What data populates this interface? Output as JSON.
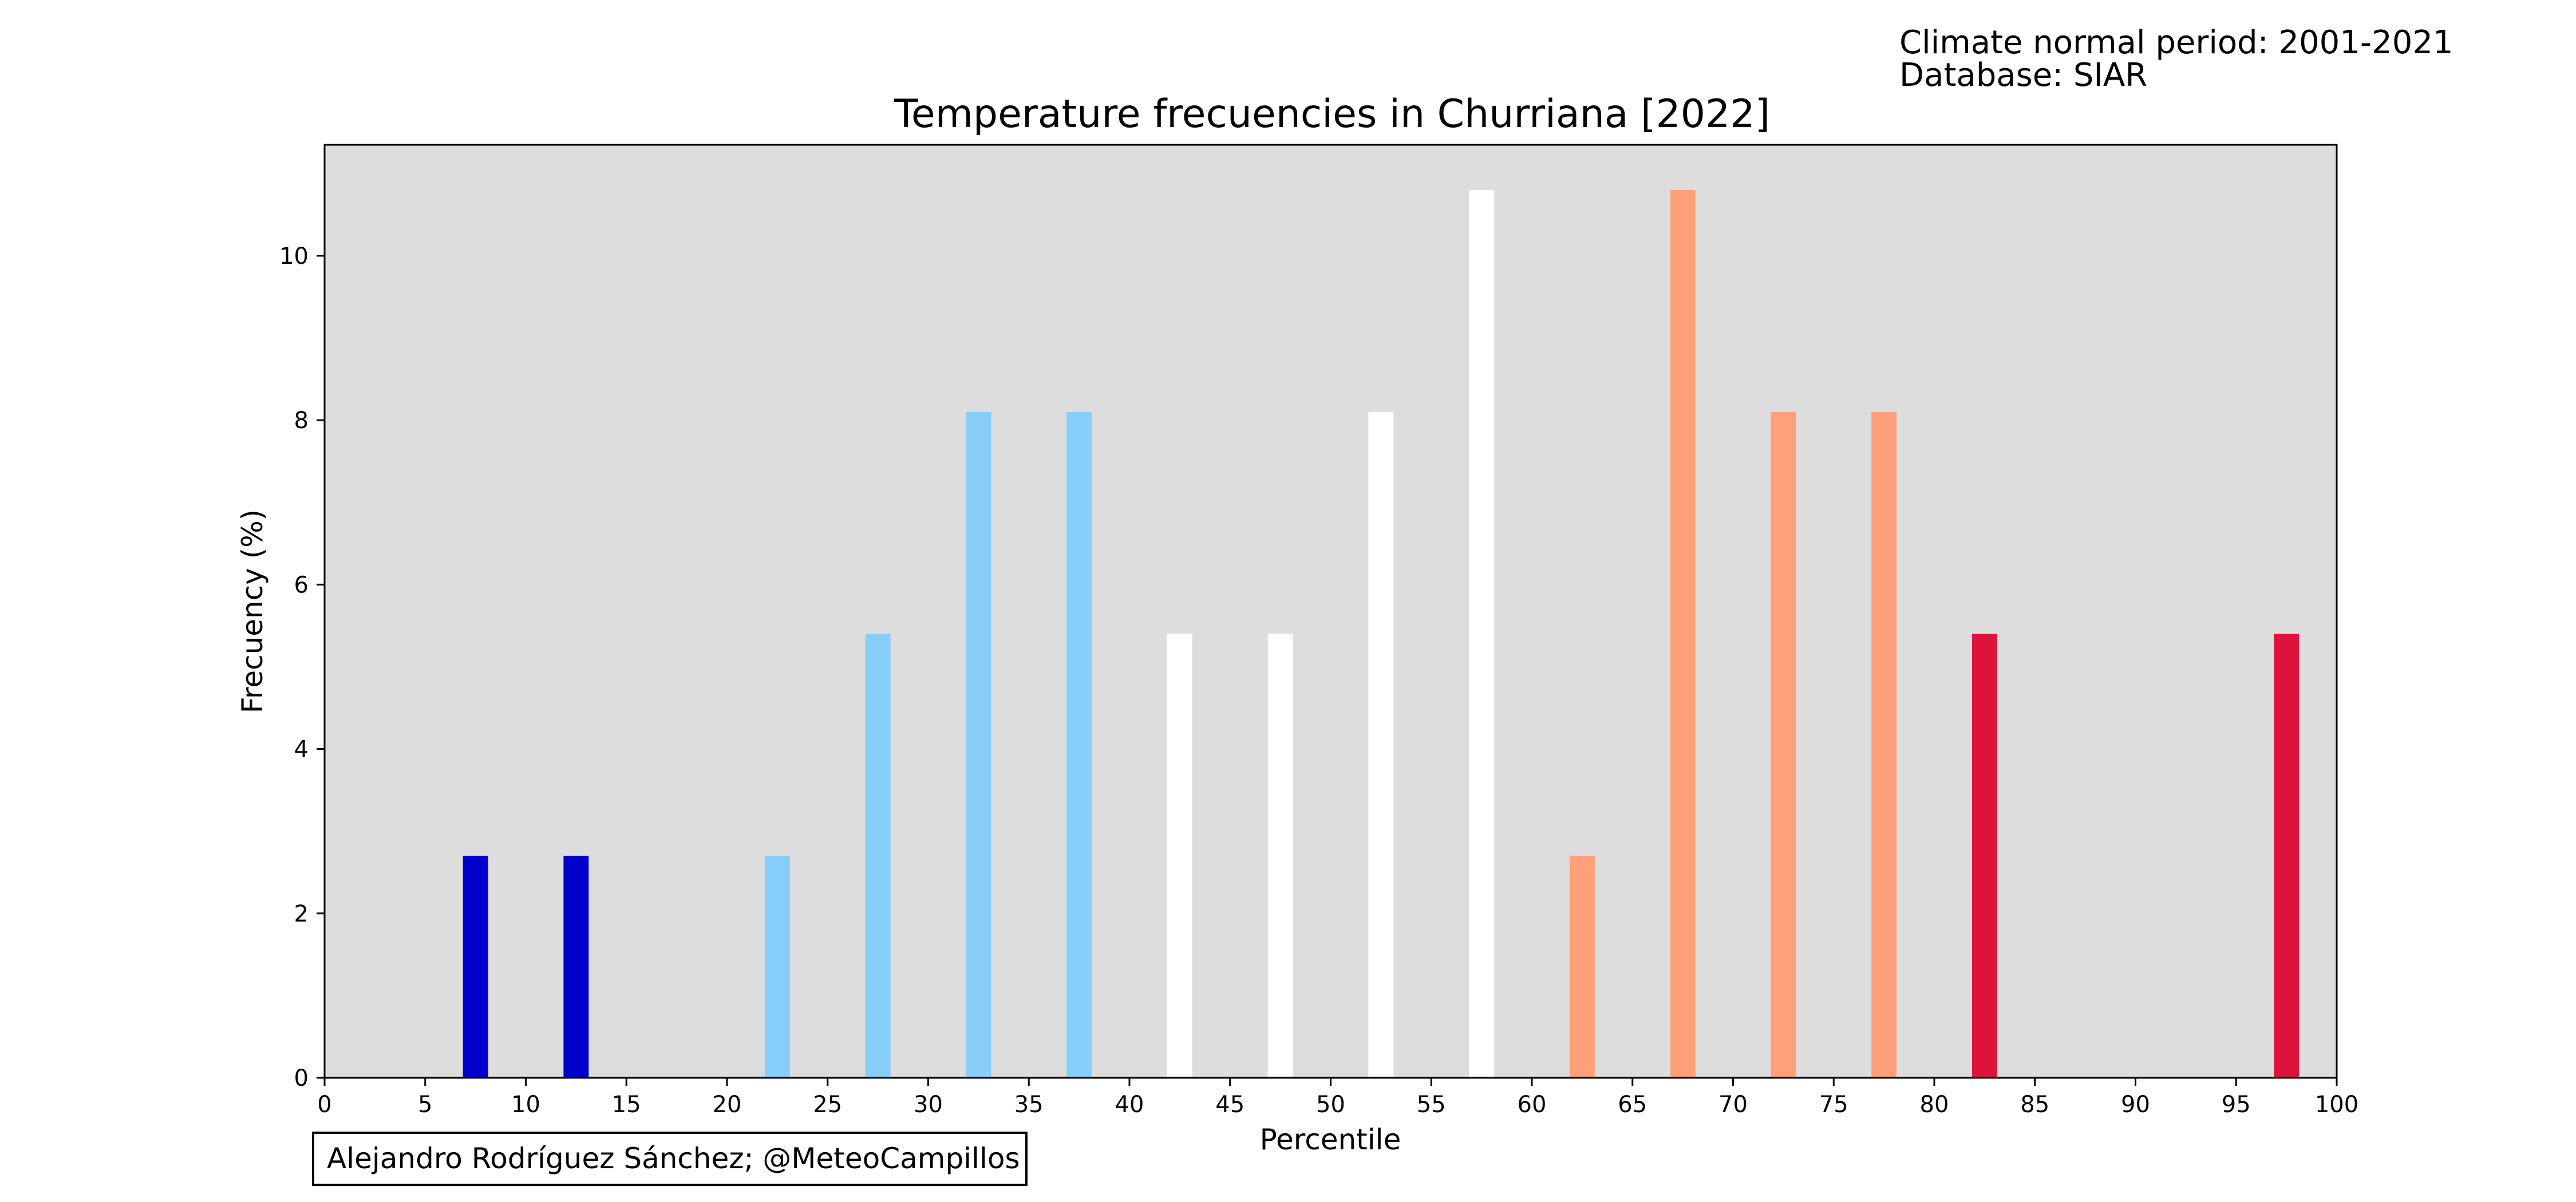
{
  "annotations": {
    "period": "Climate normal period: 2001-2021",
    "database": "Database: SIAR",
    "credit": "Alejandro Rodríguez Sánchez; @MeteoCampillos"
  },
  "chart_data": {
    "type": "bar",
    "title": "Temperature frecuencies in Churriana [2022]",
    "xlabel": "Percentile",
    "ylabel": "Frecuency (%)",
    "xlim": [
      0,
      100
    ],
    "ylim": [
      0,
      11.35
    ],
    "xticks": [
      0,
      5,
      10,
      15,
      20,
      25,
      30,
      35,
      40,
      45,
      50,
      55,
      60,
      65,
      70,
      75,
      80,
      85,
      90,
      95,
      100
    ],
    "yticks": [
      0,
      2,
      4,
      6,
      8,
      10
    ],
    "grid": false,
    "legend": "none",
    "background_color": "#dddddd",
    "bar_width": 1.25,
    "bars": [
      {
        "x": 7.5,
        "value": 2.7,
        "color": "#0000cd"
      },
      {
        "x": 12.5,
        "value": 2.7,
        "color": "#0000cd"
      },
      {
        "x": 22.5,
        "value": 2.7,
        "color": "#87cefa"
      },
      {
        "x": 27.5,
        "value": 5.4,
        "color": "#87cefa"
      },
      {
        "x": 32.5,
        "value": 8.1,
        "color": "#87cefa"
      },
      {
        "x": 37.5,
        "value": 8.1,
        "color": "#87cefa"
      },
      {
        "x": 42.5,
        "value": 5.4,
        "color": "#ffffff"
      },
      {
        "x": 47.5,
        "value": 5.4,
        "color": "#ffffff"
      },
      {
        "x": 52.5,
        "value": 8.1,
        "color": "#ffffff"
      },
      {
        "x": 57.5,
        "value": 10.8,
        "color": "#ffffff"
      },
      {
        "x": 62.5,
        "value": 2.7,
        "color": "#ffa07a"
      },
      {
        "x": 67.5,
        "value": 10.8,
        "color": "#ffa07a"
      },
      {
        "x": 72.5,
        "value": 8.1,
        "color": "#ffa07a"
      },
      {
        "x": 77.5,
        "value": 8.1,
        "color": "#ffa07a"
      },
      {
        "x": 82.5,
        "value": 5.4,
        "color": "#dc143c"
      },
      {
        "x": 97.5,
        "value": 5.4,
        "color": "#dc143c"
      }
    ]
  }
}
